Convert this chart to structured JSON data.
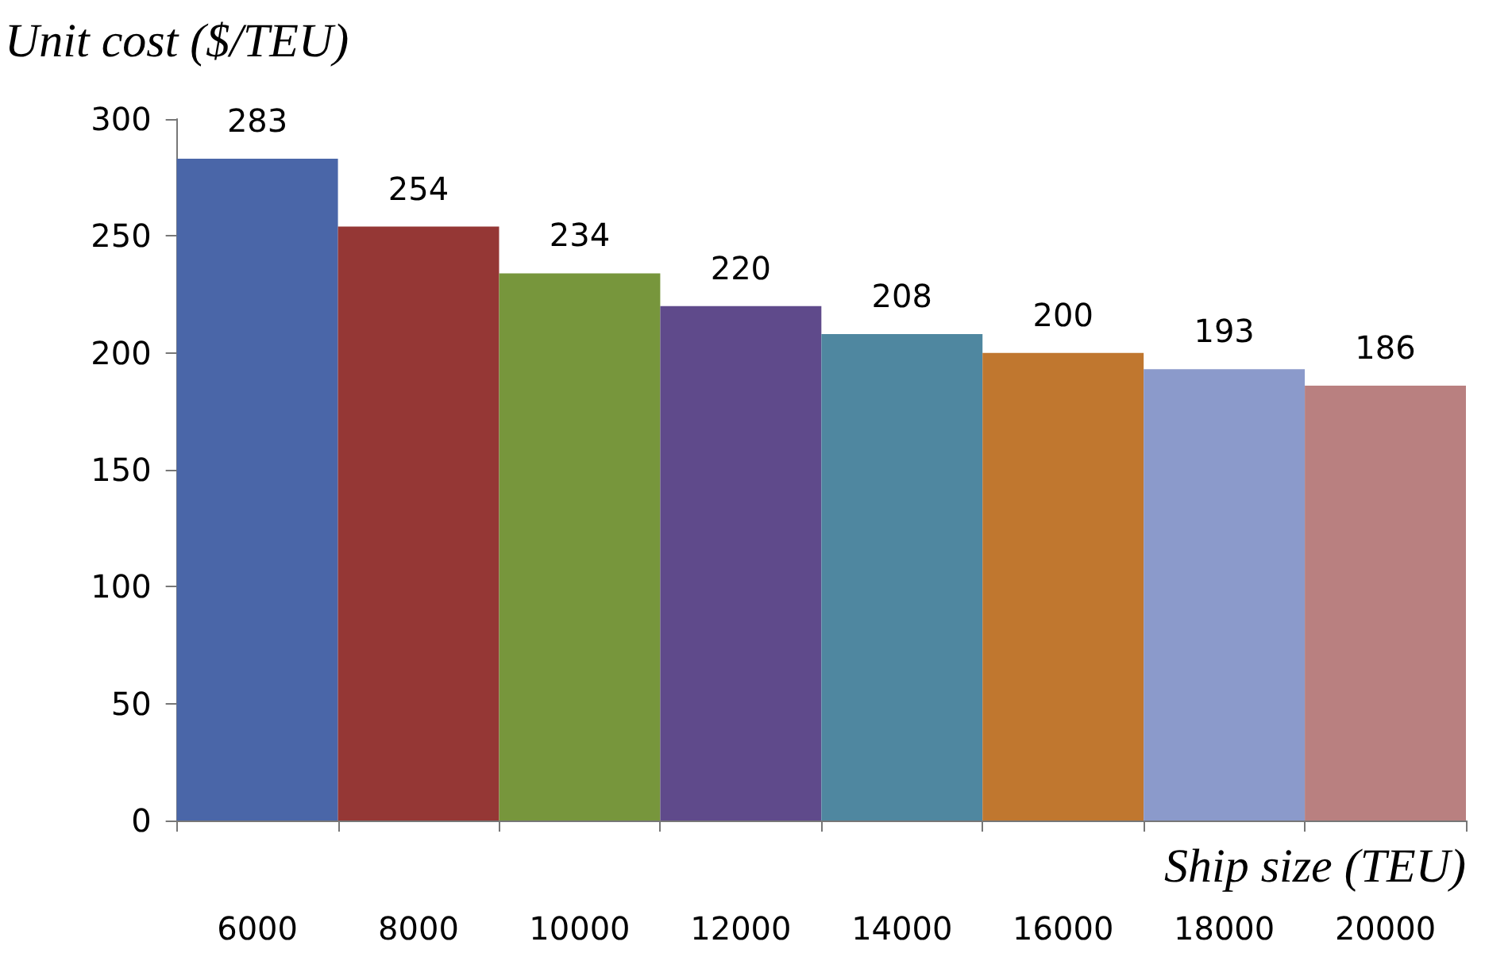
{
  "chart_data": {
    "type": "bar",
    "xlabel": "Ship size (TEU)",
    "ylabel": "Unit cost ($/TEU)",
    "categories": [
      "6000",
      "8000",
      "10000",
      "12000",
      "14000",
      "16000",
      "18000",
      "20000"
    ],
    "values": [
      283,
      254,
      234,
      220,
      208,
      200,
      193,
      186
    ],
    "colors": [
      "#4a66a8",
      "#953735",
      "#77963c",
      "#5f4a8b",
      "#4f87a0",
      "#c0772f",
      "#8b9acb",
      "#b98080"
    ],
    "ylim": [
      0,
      300
    ],
    "yticks": [
      0,
      50,
      100,
      150,
      200,
      250,
      300
    ],
    "data_labels": true,
    "grid": false
  }
}
